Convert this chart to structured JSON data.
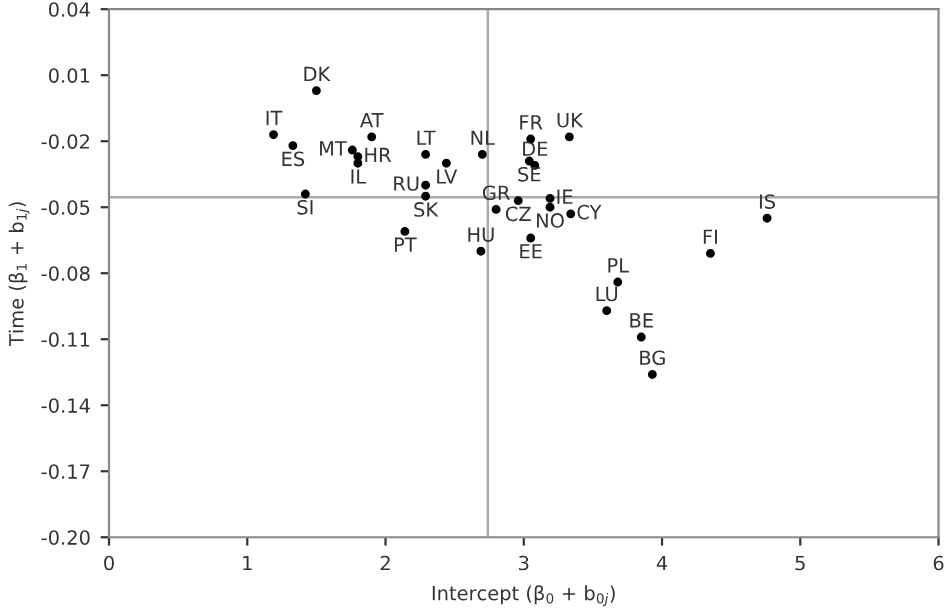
{
  "chart_data": {
    "type": "scatter",
    "xlabel": "Intercept (β$_{0}$ + b$_{0j}$)",
    "ylabel": "Time (β$_{1}$ + b$_{1j}$)",
    "x": [
      1.5,
      1.19,
      1.33,
      1.9,
      1.76,
      1.8,
      1.8,
      1.42,
      2.29,
      2.44,
      2.7,
      2.29,
      2.29,
      2.14,
      2.8,
      2.69,
      3.05,
      3.33,
      3.04,
      3.08,
      2.96,
      3.19,
      3.19,
      3.34,
      3.05,
      4.76,
      4.35,
      3.68,
      3.6,
      3.85,
      3.93
    ],
    "values": [
      0.003,
      -0.017,
      -0.022,
      -0.018,
      -0.024,
      -0.027,
      -0.03,
      -0.044,
      -0.026,
      -0.03,
      -0.026,
      -0.04,
      -0.045,
      -0.061,
      -0.051,
      -0.07,
      -0.019,
      -0.018,
      -0.029,
      -0.031,
      -0.047,
      -0.046,
      -0.05,
      -0.053,
      -0.064,
      -0.055,
      -0.071,
      -0.084,
      -0.097,
      -0.109,
      -0.126
    ],
    "color": "#000000",
    "marker": "circle",
    "grid": false,
    "annotations": [
      {
        "text": "DK",
        "x": 1.5,
        "y": 0.003
      },
      {
        "text": "IT",
        "x": 1.19,
        "y": -0.017
      },
      {
        "text": "ES",
        "x": 1.33,
        "y": -0.022
      },
      {
        "text": "AT",
        "x": 1.9,
        "y": -0.018
      },
      {
        "text": "MT",
        "x": 1.76,
        "y": -0.024
      },
      {
        "text": "HR",
        "x": 1.8,
        "y": -0.027
      },
      {
        "text": "IL",
        "x": 1.8,
        "y": -0.03
      },
      {
        "text": "SI",
        "x": 1.42,
        "y": -0.044
      },
      {
        "text": "LT",
        "x": 2.29,
        "y": -0.026
      },
      {
        "text": "LV",
        "x": 2.44,
        "y": -0.03
      },
      {
        "text": "NL",
        "x": 2.7,
        "y": -0.026
      },
      {
        "text": "RU",
        "x": 2.29,
        "y": -0.04
      },
      {
        "text": "SK",
        "x": 2.29,
        "y": -0.045
      },
      {
        "text": "PT",
        "x": 2.14,
        "y": -0.061
      },
      {
        "text": "GR",
        "x": 2.8,
        "y": -0.051
      },
      {
        "text": "HU",
        "x": 2.69,
        "y": -0.07
      },
      {
        "text": "FR",
        "x": 3.05,
        "y": -0.019
      },
      {
        "text": "UK",
        "x": 3.33,
        "y": -0.018
      },
      {
        "text": "SE",
        "x": 3.04,
        "y": -0.029
      },
      {
        "text": "DE",
        "x": 3.08,
        "y": -0.031
      },
      {
        "text": "CZ",
        "x": 2.96,
        "y": -0.047
      },
      {
        "text": "IE",
        "x": 3.19,
        "y": -0.046
      },
      {
        "text": "NO",
        "x": 3.19,
        "y": -0.05
      },
      {
        "text": "CY",
        "x": 3.34,
        "y": -0.053
      },
      {
        "text": "EE",
        "x": 3.05,
        "y": -0.064
      },
      {
        "text": "IS",
        "x": 4.76,
        "y": -0.055
      },
      {
        "text": "FI",
        "x": 4.35,
        "y": -0.071
      },
      {
        "text": "PL",
        "x": 3.68,
        "y": -0.084
      },
      {
        "text": "LU",
        "x": 3.6,
        "y": -0.097
      },
      {
        "text": "BE",
        "x": 3.85,
        "y": -0.109
      },
      {
        "text": "BG",
        "x": 3.93,
        "y": -0.126
      }
    ],
    "ref_lines": [
      {
        "axis": "x",
        "value": 2.74,
        "color": "#aaaaaa"
      },
      {
        "axis": "y",
        "value": -0.0455,
        "color": "#aaaaaa"
      }
    ],
    "xlim": [
      0,
      6
    ],
    "xticks": [
      0,
      1,
      2,
      3,
      4,
      5,
      6
    ],
    "ylim": [
      -0.2,
      0.04
    ],
    "yticks": [
      {
        "value": 0.04,
        "label": "0.04"
      },
      {
        "value": 0.01,
        "label": "0.01"
      },
      {
        "value": -0.02,
        "label": "-0.02"
      },
      {
        "value": -0.05,
        "label": "-0.05"
      },
      {
        "value": -0.08,
        "label": "-0.08"
      },
      {
        "value": -0.11,
        "label": "-0.11"
      },
      {
        "value": -0.14,
        "label": "-0.14"
      },
      {
        "value": -0.17,
        "label": "-0.17"
      },
      {
        "value": -0.2,
        "label": "-0.20"
      }
    ]
  }
}
